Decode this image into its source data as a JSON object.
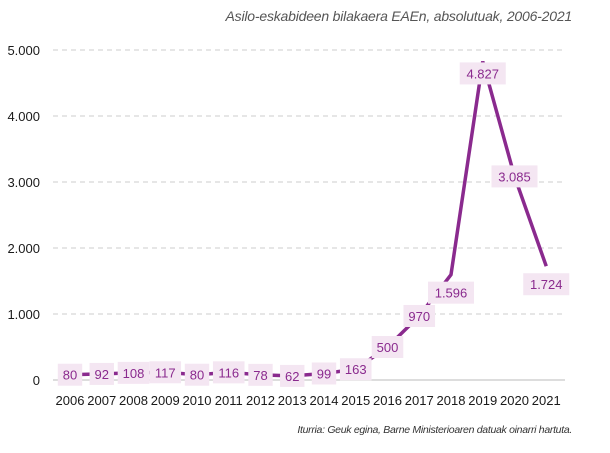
{
  "chart_data": {
    "type": "line",
    "title": "Asilo-eskabideen bilakaera EAEn, absolutuak, 2006-2021",
    "source": "Iturria: Geuk egina, Barne Ministerioaren datuak oinarri hartuta.",
    "xlabel": "",
    "ylabel": "",
    "categories": [
      "2006",
      "2007",
      "2008",
      "2009",
      "2010",
      "2011",
      "2012",
      "2013",
      "2014",
      "2015",
      "2016",
      "2017",
      "2018",
      "2019",
      "2020",
      "2021"
    ],
    "values": [
      80,
      92,
      108,
      117,
      80,
      116,
      78,
      62,
      99,
      163,
      500,
      970,
      1596,
      4827,
      3085,
      1724
    ],
    "value_labels": [
      "80",
      "92",
      "108",
      "117",
      "80",
      "116",
      "78",
      "62",
      "99",
      "163",
      "500",
      "970",
      "1.596",
      "4.827",
      "3.085",
      "1.724"
    ],
    "ylim": [
      0,
      5000
    ],
    "yticks": [
      0,
      1000,
      2000,
      3000,
      4000,
      5000
    ],
    "ytick_labels": [
      "0",
      "1.000",
      "2.000",
      "3.000",
      "4.000",
      "5.000"
    ],
    "grid": true,
    "legend": null,
    "colors": {
      "line": "#8a2a8e",
      "label_bg": "#f4e6f2",
      "label_text": "#8a2a8e",
      "grid": "#cccccc"
    }
  }
}
